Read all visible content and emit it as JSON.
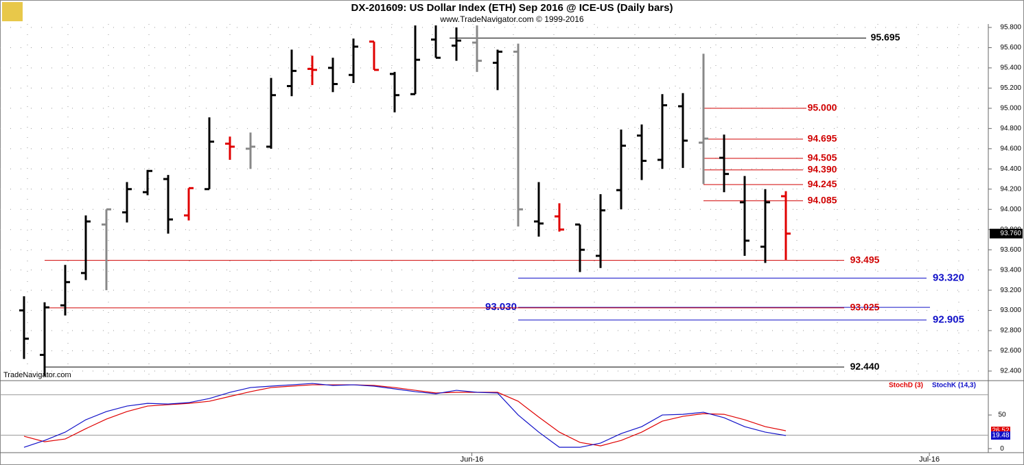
{
  "chart_data": [
    {
      "type": "ohlc",
      "title": "DX-201609:  US Dollar Index (ETH) Sep 2016 @ ICE-US  (Daily bars)",
      "subtitle": "www.TradeNavigator.com © 1999-2016",
      "watermark": "TradeNavigator.com",
      "series": [
        {
          "name": "open",
          "values": [
            93.0,
            92.56,
            93.05,
            93.37,
            93.85,
            93.97,
            94.17,
            94.3,
            93.94,
            94.2,
            94.65,
            94.6,
            94.62,
            95.22,
            95.39,
            95.4,
            95.33,
            95.66,
            95.34,
            95.14,
            95.68,
            95.62,
            95.65,
            95.45,
            95.56,
            93.88,
            93.93,
            93.85,
            93.54,
            94.19,
            94.73,
            94.49,
            95.02,
            94.66,
            94.51,
            94.07,
            93.63,
            94.13
          ]
        },
        {
          "name": "high",
          "values": [
            93.14,
            93.08,
            93.45,
            93.94,
            94.0,
            94.27,
            94.39,
            94.34,
            94.21,
            94.91,
            94.72,
            94.76,
            95.3,
            95.58,
            95.52,
            95.5,
            95.69,
            95.66,
            95.36,
            95.82,
            95.82,
            95.8,
            95.82,
            95.58,
            95.64,
            94.27,
            94.06,
            93.85,
            94.15,
            94.79,
            94.84,
            95.14,
            95.15,
            95.54,
            94.74,
            94.33,
            94.2,
            94.18
          ]
        },
        {
          "name": "low",
          "values": [
            92.52,
            92.35,
            92.95,
            93.3,
            93.2,
            93.87,
            94.14,
            93.76,
            93.89,
            94.2,
            94.49,
            94.4,
            94.6,
            95.12,
            95.23,
            95.16,
            95.25,
            95.38,
            94.96,
            95.14,
            95.5,
            95.47,
            95.36,
            95.18,
            93.83,
            93.73,
            93.78,
            93.38,
            93.42,
            94.0,
            94.29,
            94.4,
            94.41,
            94.25,
            94.17,
            93.54,
            93.47,
            93.5
          ]
        },
        {
          "name": "close",
          "values": [
            92.72,
            93.03,
            93.28,
            93.88,
            94.0,
            94.2,
            94.38,
            93.9,
            94.21,
            94.67,
            94.62,
            94.62,
            95.13,
            95.37,
            95.38,
            95.24,
            95.61,
            95.38,
            95.13,
            95.48,
            95.5,
            95.67,
            95.47,
            95.56,
            94.0,
            93.86,
            93.8,
            93.6,
            93.99,
            94.63,
            94.48,
            95.03,
            94.68,
            94.7,
            94.35,
            93.69,
            94.07,
            93.76
          ]
        }
      ],
      "colors": [
        "#000",
        "#000",
        "#000",
        "#000",
        "#888",
        "#000",
        "#000",
        "#000",
        "#e00000",
        "#000",
        "#e00000",
        "#888",
        "#000",
        "#000",
        "#e00000",
        "#000",
        "#000",
        "#e00000",
        "#000",
        "#000",
        "#000",
        "#000",
        "#888",
        "#000",
        "#888",
        "#000",
        "#e00000",
        "#000",
        "#000",
        "#000",
        "#000",
        "#000",
        "#000",
        "#888",
        "#000",
        "#000",
        "#000",
        "#e00000"
      ],
      "ylim": [
        92.305,
        95.834
      ],
      "yticks": [
        {
          "value": 92.4,
          "label": "92.400"
        },
        {
          "value": 92.6,
          "label": "92.600"
        },
        {
          "value": 92.8,
          "label": "92.800"
        },
        {
          "value": 93.0,
          "label": "93.000"
        },
        {
          "value": 93.2,
          "label": "93.200"
        },
        {
          "value": 93.4,
          "label": "93.400"
        },
        {
          "value": 93.6,
          "label": "93.600"
        },
        {
          "value": 93.8,
          "label": "93.800"
        },
        {
          "value": 94.0,
          "label": "94.000"
        },
        {
          "value": 94.2,
          "label": "94.200"
        },
        {
          "value": 94.4,
          "label": "94.400"
        },
        {
          "value": 94.6,
          "label": "94.600"
        },
        {
          "value": 94.8,
          "label": "94.800"
        },
        {
          "value": 95.0,
          "label": "95.000"
        },
        {
          "value": 95.2,
          "label": "95.200"
        },
        {
          "value": 95.4,
          "label": "95.400"
        },
        {
          "value": 95.6,
          "label": "95.600"
        },
        {
          "value": 95.8,
          "label": "95.800"
        }
      ],
      "last_price": {
        "value": 93.76,
        "label": "93.760"
      },
      "levels": [
        {
          "value": 95.695,
          "label": "95.695",
          "color": "#000000"
        },
        {
          "value": 95.0,
          "label": "95.000",
          "color": "#d00000"
        },
        {
          "value": 94.695,
          "label": "94.695",
          "color": "#d00000"
        },
        {
          "value": 94.505,
          "label": "94.505",
          "color": "#d00000"
        },
        {
          "value": 94.39,
          "label": "94.390",
          "color": "#d00000"
        },
        {
          "value": 94.245,
          "label": "94.245",
          "color": "#d00000"
        },
        {
          "value": 94.085,
          "label": "94.085",
          "color": "#d00000"
        },
        {
          "value": 93.495,
          "label": "93.495",
          "color": "#d00000"
        },
        {
          "value": 93.32,
          "label": "93.320",
          "color": "#1010c8"
        },
        {
          "value": 93.03,
          "label": "93.030",
          "color": "#1010c8"
        },
        {
          "value": 93.025,
          "label": "93.025",
          "color": "#d00000"
        },
        {
          "value": 92.905,
          "label": "92.905",
          "color": "#1010c8"
        },
        {
          "value": 92.44,
          "label": "92.440",
          "color": "#000000"
        }
      ],
      "grid": true
    },
    {
      "type": "line",
      "xlim": [
        -1,
        47
      ],
      "xticks": [
        {
          "value": 21.75,
          "label": "Jun-16"
        },
        {
          "value": 43.97,
          "label": "Jul-16"
        }
      ],
      "series": [
        {
          "name": "StochD (3)",
          "color": "#e00000",
          "values": [
            18.4,
            10.2,
            14.3,
            29.6,
            43.9,
            55.1,
            63.3,
            65.3,
            67.3,
            70.4,
            77.6,
            84.7,
            90.8,
            92.9,
            94.9,
            94.9,
            94.9,
            93.9,
            90.8,
            86.7,
            82.7,
            83.7,
            83.7,
            83.7,
            70.4,
            46.9,
            24.5,
            9.2,
            4.1,
            12.2,
            24.5,
            40.8,
            48,
            52,
            51,
            42.9,
            32.7,
            26.52
          ]
        },
        {
          "name": "StochK (14,3)",
          "color": "#1010c8",
          "values": [
            2,
            12.2,
            24.5,
            42.9,
            55.1,
            63.3,
            67.3,
            66.3,
            68.4,
            74.5,
            83.7,
            90.8,
            92.9,
            94.9,
            96.9,
            93.9,
            94.9,
            92.9,
            88.8,
            84.7,
            81.6,
            86.7,
            83.7,
            82.7,
            50,
            24.5,
            2,
            2,
            8.2,
            22.4,
            32.7,
            50,
            51,
            54.1,
            45.9,
            32.7,
            24.5,
            19.48
          ]
        }
      ],
      "ylim": [
        -6,
        98
      ],
      "yticks": [
        0,
        50
      ],
      "levels": [
        20,
        80
      ]
    }
  ]
}
